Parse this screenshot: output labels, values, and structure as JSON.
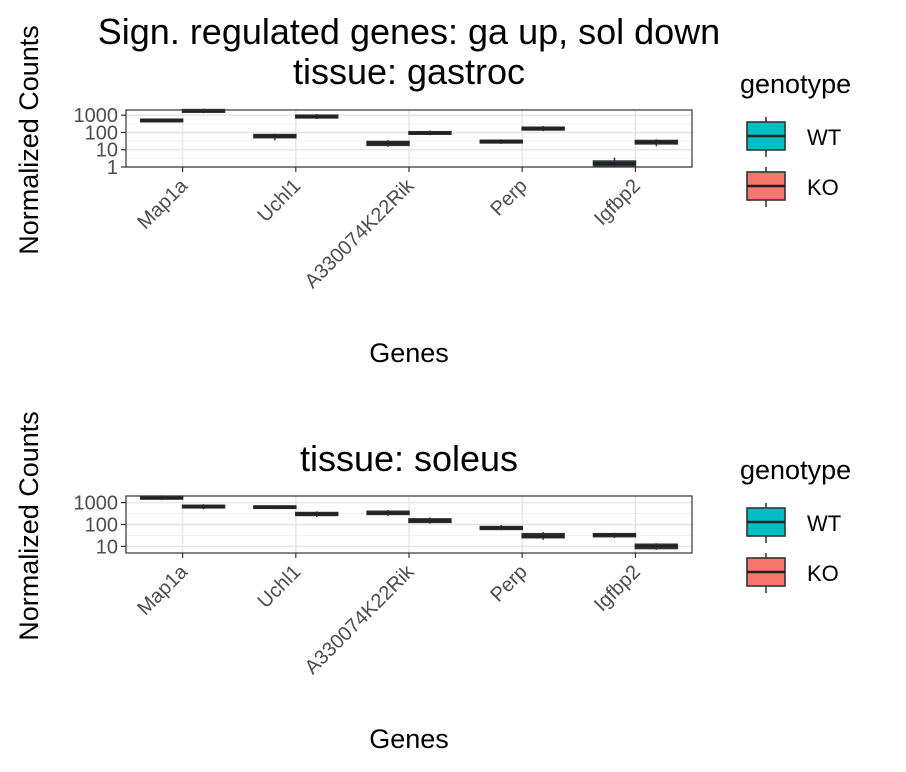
{
  "chart_data": [
    {
      "type": "boxplot",
      "title": "Sign. regulated genes: ga up, sol down",
      "subtitle": "tissue: gastroc",
      "xlabel": "Genes",
      "ylabel": "Normalized Counts",
      "yscale": "log10",
      "ylim": [
        1,
        2000
      ],
      "yticks": [
        1,
        10,
        100,
        1000
      ],
      "ytick_labels": [
        "1",
        "10",
        "100",
        "1000"
      ],
      "categories": [
        "Map1a",
        "Uchl1",
        "A330074K22Rik",
        "Perp",
        "Igfbp2"
      ],
      "grid": true,
      "legend_position": "right",
      "series": [
        {
          "name": "WT",
          "color": "#00BFC4",
          "boxes": [
            {
              "min": 380,
              "q1": 420,
              "median": 500,
              "q3": 580,
              "max": 640
            },
            {
              "min": 35,
              "q1": 50,
              "median": 60,
              "q3": 75,
              "max": 85
            },
            {
              "min": 15,
              "q1": 18,
              "median": 24,
              "q3": 30,
              "max": 36
            },
            {
              "min": 22,
              "q1": 25,
              "median": 30,
              "q3": 35,
              "max": 40
            },
            {
              "min": 1,
              "q1": 1.2,
              "median": 1.6,
              "q3": 2.2,
              "max": 3.5
            }
          ]
        },
        {
          "name": "KO",
          "color": "#F8766D",
          "boxes": [
            {
              "min": 1300,
              "q1": 1500,
              "median": 1800,
              "q3": 2100,
              "max": 2400
            },
            {
              "min": 600,
              "q1": 700,
              "median": 850,
              "q3": 1000,
              "max": 1150
            },
            {
              "min": 70,
              "q1": 80,
              "median": 90,
              "q3": 110,
              "max": 130
            },
            {
              "min": 120,
              "q1": 140,
              "median": 170,
              "q3": 200,
              "max": 240
            },
            {
              "min": 16,
              "q1": 22,
              "median": 28,
              "q3": 34,
              "max": 40
            }
          ]
        }
      ]
    },
    {
      "type": "boxplot",
      "title": "",
      "subtitle": "tissue: soleus",
      "xlabel": "Genes",
      "ylabel": "Normalized Counts",
      "yscale": "log10",
      "ylim": [
        5,
        2000
      ],
      "yticks": [
        10,
        100,
        1000
      ],
      "ytick_labels": [
        "10",
        "100",
        "1000"
      ],
      "categories": [
        "Map1a",
        "Uchl1",
        "A330074K22Rik",
        "Perp",
        "Igfbp2"
      ],
      "grid": true,
      "legend_position": "right",
      "series": [
        {
          "name": "WT",
          "color": "#00BFC4",
          "boxes": [
            {
              "min": 1300,
              "q1": 1450,
              "median": 1700,
              "q3": 1950,
              "max": 2150
            },
            {
              "min": 500,
              "q1": 550,
              "median": 620,
              "q3": 700,
              "max": 750
            },
            {
              "min": 250,
              "q1": 290,
              "median": 340,
              "q3": 400,
              "max": 460
            },
            {
              "min": 55,
              "q1": 60,
              "median": 68,
              "q3": 80,
              "max": 95
            },
            {
              "min": 24,
              "q1": 28,
              "median": 33,
              "q3": 38,
              "max": 42
            }
          ]
        },
        {
          "name": "KO",
          "color": "#F8766D",
          "boxes": [
            {
              "min": 500,
              "q1": 580,
              "median": 650,
              "q3": 750,
              "max": 850
            },
            {
              "min": 220,
              "q1": 260,
              "median": 300,
              "q3": 350,
              "max": 400
            },
            {
              "min": 110,
              "q1": 125,
              "median": 150,
              "q3": 180,
              "max": 210
            },
            {
              "min": 20,
              "q1": 25,
              "median": 30,
              "q3": 38,
              "max": 45
            },
            {
              "min": 7,
              "q1": 8,
              "median": 10,
              "q3": 12.5,
              "max": 14
            }
          ]
        }
      ]
    }
  ],
  "legend": {
    "title": "genotype",
    "entries": [
      "WT",
      "KO"
    ]
  }
}
